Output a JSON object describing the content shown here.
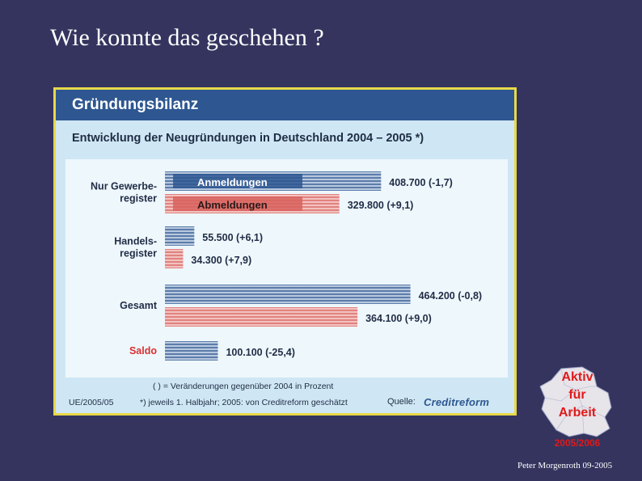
{
  "slide": {
    "title": "Wie konnte das geschehen ?",
    "author": "Peter Morgenroth 09-2005"
  },
  "figure": {
    "title": "Gründungsbilanz",
    "subtitle": "Entwicklung der Neugründungen in Deutschland 2004 – 2005 *)",
    "note_changes": "( ) = Veränderungen gegenüber 2004 in Prozent",
    "code": "UE/2005/05",
    "note_period": "*) jeweils 1. Halbjahr; 2005: von Creditreform geschätzt",
    "source_label": "Quelle:",
    "source_name": "Creditreform"
  },
  "chart_data": {
    "type": "bar",
    "orientation": "horizontal",
    "groups": [
      {
        "label_lines": [
          "Nur Gewerbe-",
          "register"
        ],
        "bars": [
          {
            "series": "anmeldungen",
            "value": 408700,
            "label": "408.700 (-1,7)",
            "inline_label": "Anmeldungen"
          },
          {
            "series": "abmeldungen",
            "value": 329800,
            "label": "329.800 (+9,1)",
            "inline_label": "Abmeldungen"
          }
        ]
      },
      {
        "label_lines": [
          "Handels-",
          "register"
        ],
        "bars": [
          {
            "series": "anmeldungen",
            "value": 55500,
            "label": "55.500 (+6,1)"
          },
          {
            "series": "abmeldungen",
            "value": 34300,
            "label": "34.300 (+7,9)"
          }
        ]
      },
      {
        "label_lines": [
          "Gesamt"
        ],
        "bars": [
          {
            "series": "anmeldungen",
            "value": 464200,
            "label": "464.200 (-0,8)"
          },
          {
            "series": "abmeldungen",
            "value": 364100,
            "label": "364.100 (+9,0)"
          }
        ]
      },
      {
        "label_lines": [
          "Saldo"
        ],
        "label_color": "#d83030",
        "bars": [
          {
            "series": "anmeldungen",
            "value": 100100,
            "label": "100.100 (-25,4)"
          }
        ]
      }
    ],
    "colors": {
      "anmeldungen": "#2e5791",
      "abmeldungen": "#d8625e"
    }
  },
  "logo": {
    "lines": [
      "Aktiv",
      "für",
      "Arbeit"
    ],
    "years": "2005/2006"
  }
}
